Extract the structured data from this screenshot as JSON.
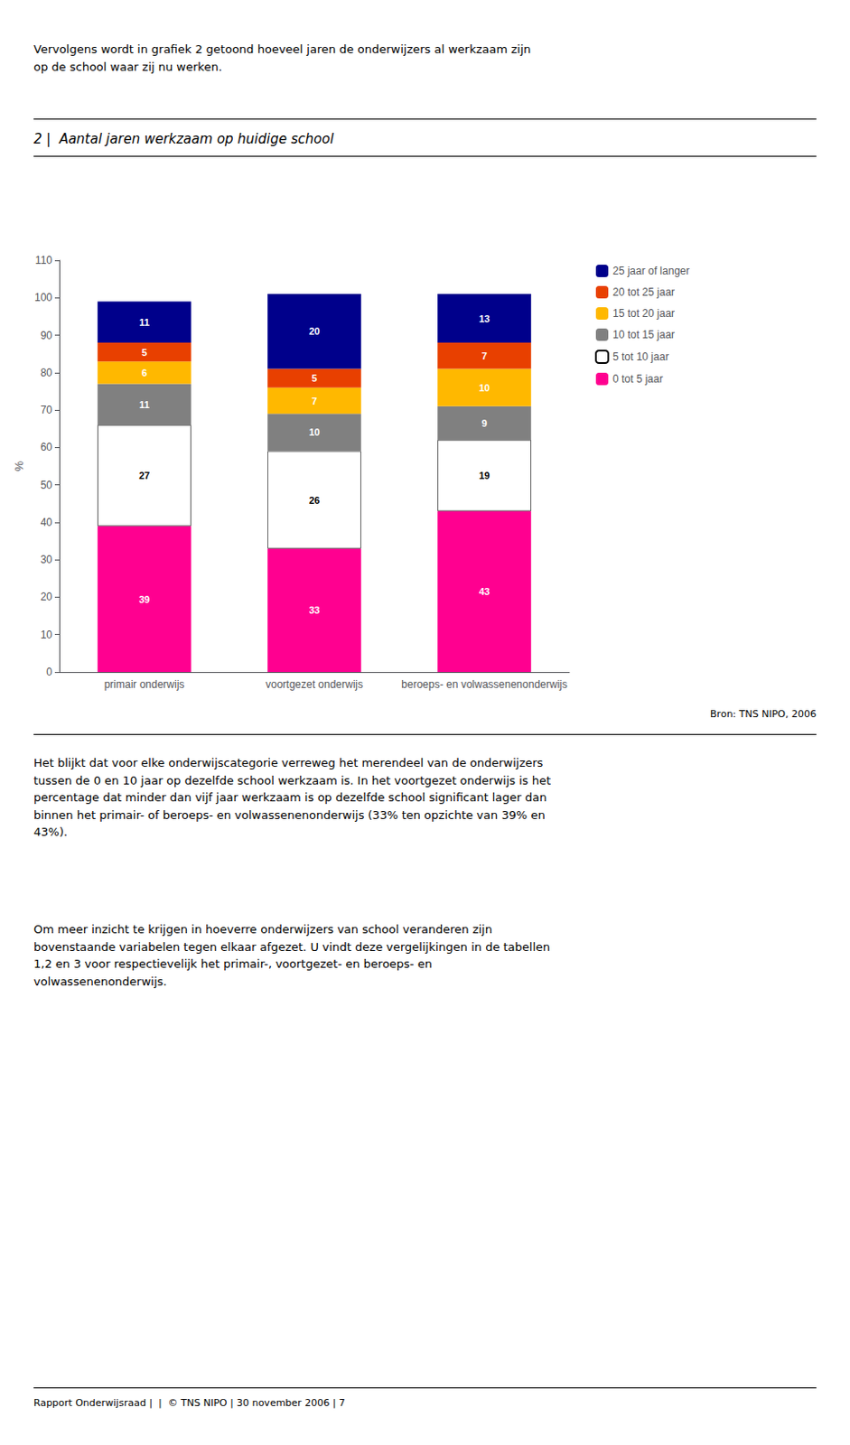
{
  "intro_text": "Vervolgens wordt in grafiek 2 getoond hoeveel jaren de onderwijzers al werkzaam zijn\nop de school waar zij nu werken.",
  "source_text": "Bron: TNS NIPO, 2006",
  "body_text": [
    "Het blijkt dat voor elke onderwijscategorie verreweg het merendeel van de onderwijzers\ntussen de 0 en 10 jaar op dezelfde school werkzaam is. In het voortgezet onderwijs is het\npercentage dat minder dan vijf jaar werkzaam is op dezelfde school significant lager dan\nbinnen het primair- of beroeps- en volwassenenonderwijs (33% ten opzichte van 39% en\n43%).",
    "Om meer inzicht te krijgen in hoeverre onderwijzers van school veranderen zijn\nbovenstaande variabelen tegen elkaar afgezet. U vindt deze vergelijkingen in de tabellen\n1,2 en 3 voor respectievelijk het primair-, voortgezet- en beroeps- en\nvolwassenenonderwijs."
  ],
  "footer_text": "Rapport Onderwijsraad |  |  © TNS NIPO | 30 november 2006 | 7",
  "chart_data": {
    "type": "bar",
    "title": "2 |  Aantal jaren werkzaam op huidige school",
    "ylabel": "%",
    "categories": [
      "primair onderwijs",
      "voortgezet onderwijs",
      "beroeps- en volwassenenonderwijs"
    ],
    "series": [
      {
        "name": "0 tot 5 jaar",
        "color": "#FF0090",
        "values": [
          39,
          33,
          43
        ]
      },
      {
        "name": "5 tot 10 jaar",
        "color": "#FFFFFF",
        "values": [
          27,
          26,
          19
        ]
      },
      {
        "name": "10 tot 15 jaar",
        "color": "#808080",
        "values": [
          11,
          10,
          9
        ]
      },
      {
        "name": "15 tot 20 jaar",
        "color": "#FFB800",
        "values": [
          6,
          7,
          10
        ]
      },
      {
        "name": "20 tot 25 jaar",
        "color": "#E84000",
        "values": [
          5,
          5,
          7
        ]
      },
      {
        "name": "25 jaar of langer",
        "color": "#00008B",
        "values": [
          11,
          20,
          13
        ]
      }
    ],
    "ylim": [
      0,
      110
    ],
    "yticks": [
      0,
      10,
      20,
      30,
      40,
      50,
      60,
      70,
      80,
      90,
      100,
      110
    ],
    "stacked": true,
    "data_labels": true,
    "grid": false,
    "legend": "right"
  }
}
